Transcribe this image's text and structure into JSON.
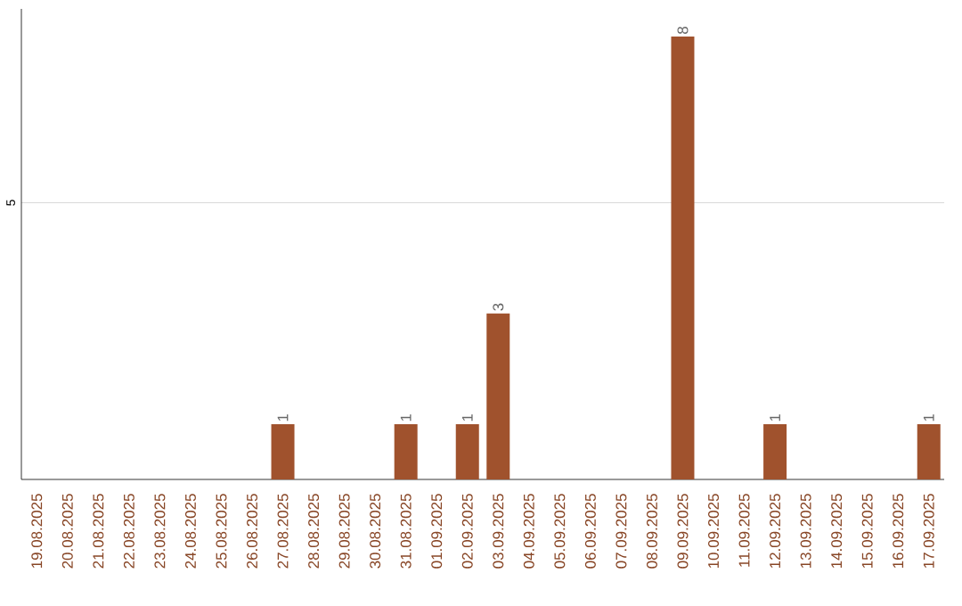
{
  "chart_data": {
    "type": "bar",
    "categories": [
      "19.08.2025",
      "20.08.2025",
      "21.08.2025",
      "22.08.2025",
      "23.08.2025",
      "24.08.2025",
      "25.08.2025",
      "26.08.2025",
      "27.08.2025",
      "28.08.2025",
      "29.08.2025",
      "30.08.2025",
      "31.08.2025",
      "01.09.2025",
      "02.09.2025",
      "03.09.2025",
      "04.09.2025",
      "05.09.2025",
      "06.09.2025",
      "07.09.2025",
      "08.09.2025",
      "09.09.2025",
      "10.09.2025",
      "11.09.2025",
      "12.09.2025",
      "13.09.2025",
      "14.09.2025",
      "15.09.2025",
      "16.09.2025",
      "17.09.2025"
    ],
    "values": [
      0,
      0,
      0,
      0,
      0,
      0,
      0,
      0,
      1,
      0,
      0,
      0,
      1,
      0,
      1,
      3,
      0,
      0,
      0,
      0,
      0,
      8,
      0,
      0,
      1,
      0,
      0,
      0,
      0,
      1
    ],
    "value_labels": [
      null,
      null,
      null,
      null,
      null,
      null,
      null,
      null,
      "1",
      null,
      null,
      null,
      "1",
      null,
      "1",
      "3",
      null,
      null,
      null,
      null,
      null,
      "8",
      null,
      null,
      "1",
      null,
      null,
      null,
      null,
      "1"
    ],
    "color": "#a0522d",
    "ylim": [
      0,
      8.5
    ],
    "yticks": [
      5
    ],
    "grid": "y"
  }
}
